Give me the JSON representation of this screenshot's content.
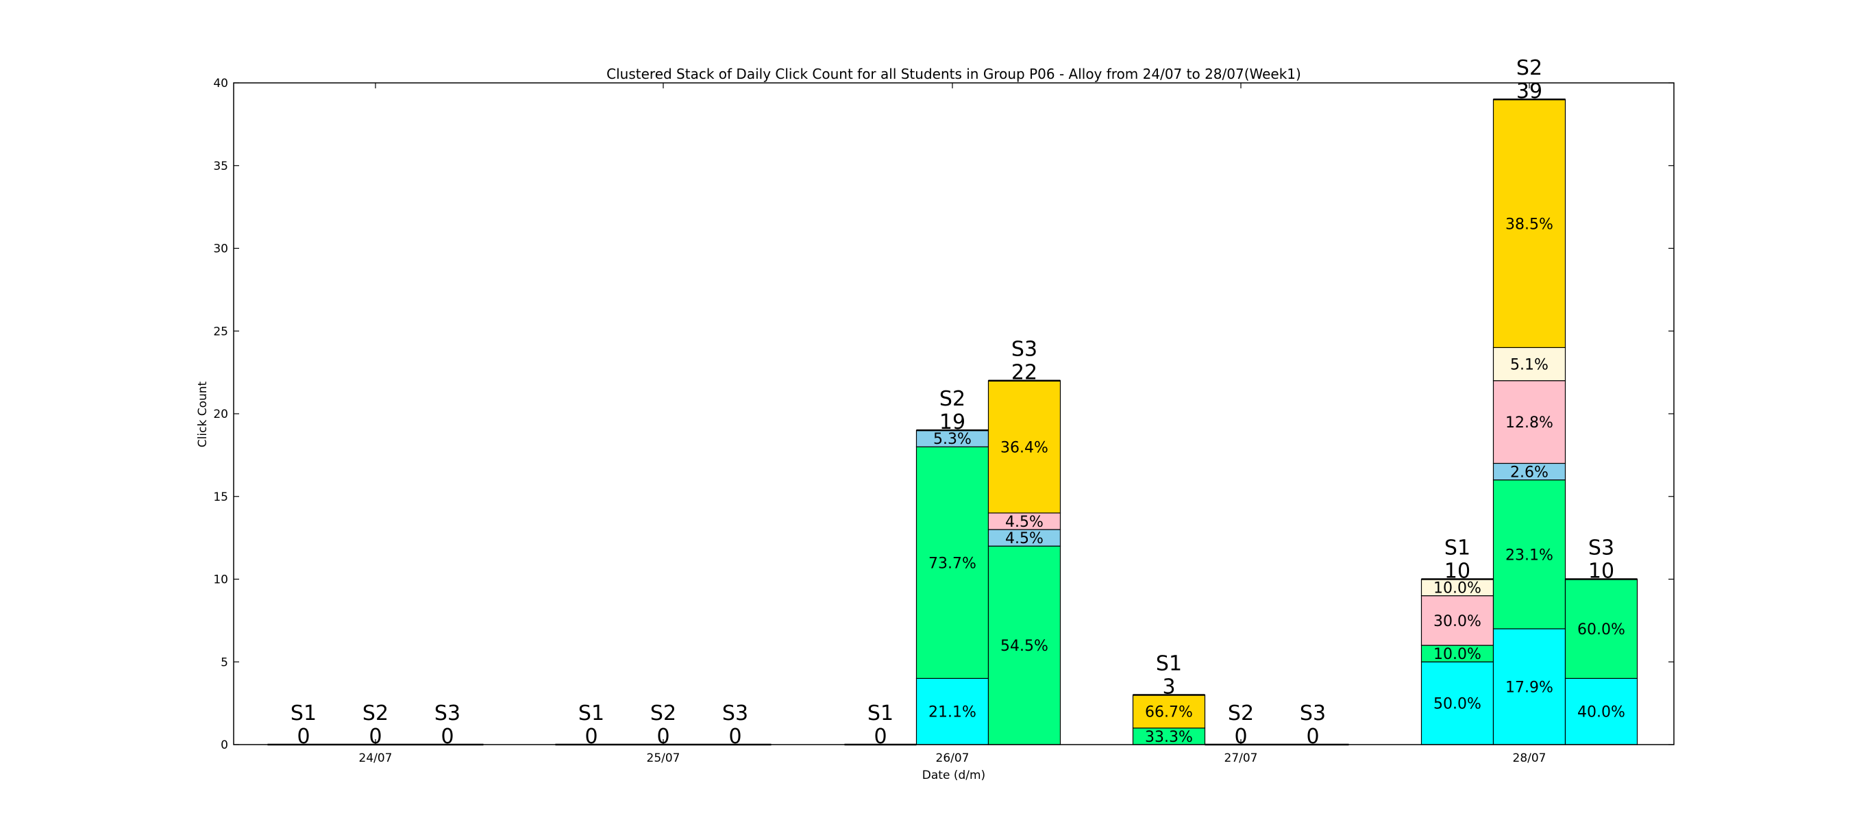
{
  "chart_data": {
    "type": "bar",
    "title": "Clustered Stack of Daily Click Count for all Students in Group P06 - Alloy from 24/07 to 28/07(Week1)",
    "xlabel": "Date (d/m)",
    "ylabel": "Click Count",
    "ylim": [
      0,
      40
    ],
    "yticks": [
      0,
      5,
      10,
      15,
      20,
      25,
      30,
      35,
      40
    ],
    "categories": [
      "24/07",
      "25/07",
      "26/07",
      "27/07",
      "28/07"
    ],
    "students": [
      "S1",
      "S2",
      "S3"
    ],
    "component_colors": [
      "#00ffff",
      "#00ff7f",
      "#87ceeb",
      "#ffc0cb",
      "#fff8dc",
      "#ffd700"
    ],
    "bars": [
      {
        "date": "24/07",
        "student": "S1",
        "total": "0",
        "segments": []
      },
      {
        "date": "24/07",
        "student": "S2",
        "total": "0",
        "segments": []
      },
      {
        "date": "24/07",
        "student": "S3",
        "total": "0",
        "segments": []
      },
      {
        "date": "25/07",
        "student": "S1",
        "total": "0",
        "segments": []
      },
      {
        "date": "25/07",
        "student": "S2",
        "total": "0",
        "segments": []
      },
      {
        "date": "25/07",
        "student": "S3",
        "total": "0",
        "segments": []
      },
      {
        "date": "26/07",
        "student": "S1",
        "total": "0",
        "segments": []
      },
      {
        "date": "26/07",
        "student": "S2",
        "total": "19",
        "segments": [
          {
            "value": 4,
            "color": "#00ffff",
            "label": "21.1%"
          },
          {
            "value": 14,
            "color": "#00ff7f",
            "label": "73.7%"
          },
          {
            "value": 1,
            "color": "#87ceeb",
            "label": "5.3%"
          }
        ]
      },
      {
        "date": "26/07",
        "student": "S3",
        "total": "22",
        "segments": [
          {
            "value": 12,
            "color": "#00ff7f",
            "label": "54.5%"
          },
          {
            "value": 1,
            "color": "#87ceeb",
            "label": "4.5%"
          },
          {
            "value": 1,
            "color": "#ffc0cb",
            "label": "4.5%"
          },
          {
            "value": 8,
            "color": "#ffd700",
            "label": "36.4%"
          }
        ]
      },
      {
        "date": "27/07",
        "student": "S1",
        "total": "3",
        "segments": [
          {
            "value": 1,
            "color": "#00ff7f",
            "label": "33.3%"
          },
          {
            "value": 2,
            "color": "#ffd700",
            "label": "66.7%"
          }
        ]
      },
      {
        "date": "27/07",
        "student": "S2",
        "total": "0",
        "segments": []
      },
      {
        "date": "27/07",
        "student": "S3",
        "total": "0",
        "segments": []
      },
      {
        "date": "28/07",
        "student": "S1",
        "total": "10",
        "segments": [
          {
            "value": 5,
            "color": "#00ffff",
            "label": "50.0%"
          },
          {
            "value": 1,
            "color": "#00ff7f",
            "label": "10.0%"
          },
          {
            "value": 3,
            "color": "#ffc0cb",
            "label": "30.0%"
          },
          {
            "value": 1,
            "color": "#fff8dc",
            "label": "10.0%"
          }
        ]
      },
      {
        "date": "28/07",
        "student": "S2",
        "total": "39",
        "segments": [
          {
            "value": 7,
            "color": "#00ffff",
            "label": "17.9%"
          },
          {
            "value": 9,
            "color": "#00ff7f",
            "label": "23.1%"
          },
          {
            "value": 1,
            "color": "#87ceeb",
            "label": "2.6%"
          },
          {
            "value": 5,
            "color": "#ffc0cb",
            "label": "12.8%"
          },
          {
            "value": 2,
            "color": "#fff8dc",
            "label": "5.1%"
          },
          {
            "value": 15,
            "color": "#ffd700",
            "label": "38.5%"
          }
        ]
      },
      {
        "date": "28/07",
        "student": "S3",
        "total": "10",
        "segments": [
          {
            "value": 4,
            "color": "#00ffff",
            "label": "40.0%"
          },
          {
            "value": 6,
            "color": "#00ff7f",
            "label": "60.0%"
          }
        ]
      }
    ]
  }
}
